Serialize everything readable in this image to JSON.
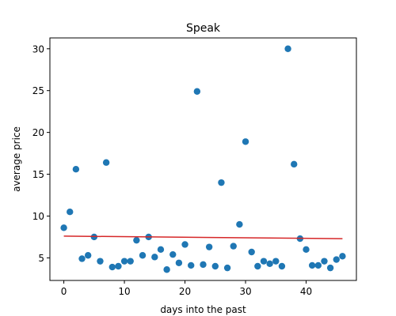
{
  "chart_data": {
    "type": "scatter",
    "title": "Speak",
    "xlabel": "days into the past",
    "ylabel": "average price",
    "xlim": [
      -2.3,
      48.3
    ],
    "ylim": [
      2.3,
      31.3
    ],
    "xticks": [
      0,
      10,
      20,
      30,
      40
    ],
    "yticks": [
      5,
      10,
      15,
      20,
      25,
      30
    ],
    "grid": false,
    "point_color": "#1f77b4",
    "trend_color": "#d62728",
    "points": {
      "x": [
        0,
        1,
        2,
        3,
        4,
        5,
        6,
        7,
        8,
        9,
        10,
        11,
        12,
        13,
        14,
        15,
        16,
        17,
        18,
        19,
        20,
        21,
        22,
        23,
        24,
        25,
        26,
        27,
        28,
        29,
        30,
        31,
        32,
        33,
        34,
        35,
        36,
        37,
        38,
        39,
        40,
        41,
        42,
        43,
        44,
        45,
        46
      ],
      "y": [
        8.6,
        10.5,
        15.6,
        4.9,
        5.3,
        7.5,
        4.6,
        16.4,
        3.9,
        4.0,
        4.6,
        4.6,
        7.1,
        5.3,
        7.5,
        5.1,
        6.0,
        3.6,
        5.4,
        4.4,
        6.6,
        4.1,
        24.9,
        4.2,
        6.3,
        4.0,
        14.0,
        3.8,
        6.4,
        9.0,
        18.9,
        5.7,
        4.0,
        4.6,
        4.3,
        4.6,
        4.0,
        30.0,
        16.2,
        7.3,
        6.0,
        4.1,
        4.1,
        4.6,
        3.8,
        4.8,
        5.2
      ]
    },
    "trend_line": {
      "x": [
        0,
        46
      ],
      "y": [
        7.6,
        7.3
      ]
    }
  }
}
